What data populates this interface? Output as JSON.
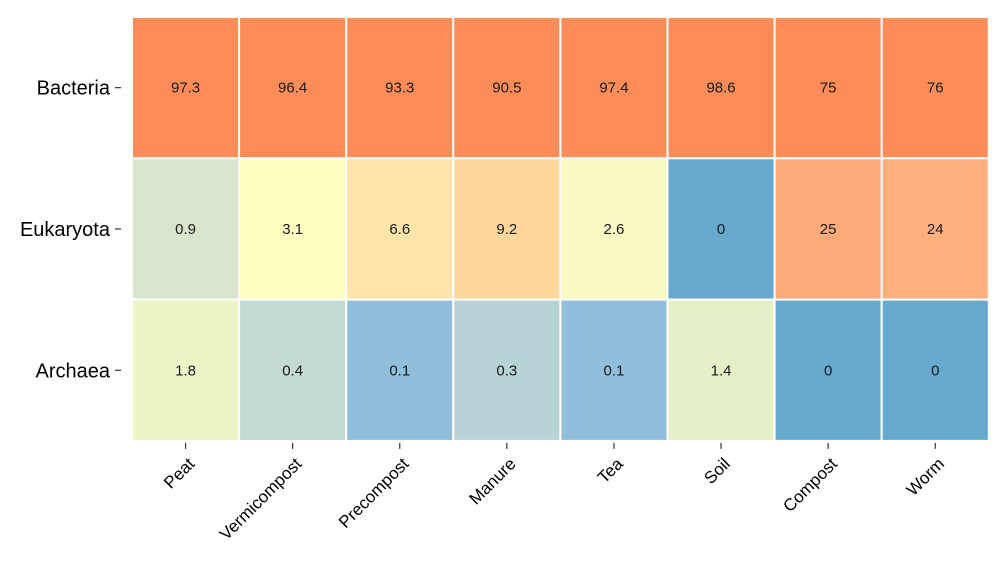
{
  "chart_data": {
    "type": "heatmap",
    "rows": [
      "Bacteria",
      "Eukaryota",
      "Archaea"
    ],
    "columns": [
      "Peat",
      "Vermicompost",
      "Precompost",
      "Manure",
      "Tea",
      "Soil",
      "Compost",
      "Worm"
    ],
    "values": [
      [
        97.3,
        96.4,
        93.3,
        90.5,
        97.4,
        98.6,
        75,
        76
      ],
      [
        0.9,
        3.1,
        6.6,
        9.2,
        2.6,
        0,
        25,
        24
      ],
      [
        1.8,
        0.4,
        0.1,
        0.3,
        0.1,
        1.4,
        0,
        0
      ]
    ],
    "labels": [
      [
        "97.3",
        "96.4",
        "93.3",
        "90.5",
        "97.4",
        "98.6",
        "75",
        "76"
      ],
      [
        "0.9",
        "3.1",
        "6.6",
        "9.2",
        "2.6",
        "0",
        "25",
        "24"
      ],
      [
        "1.8",
        "0.4",
        "0.1",
        "0.3",
        "0.1",
        "1.4",
        "0",
        "0"
      ]
    ],
    "colors": [
      [
        "#fc8d59",
        "#fc8d59",
        "#fc8d59",
        "#fc8d59",
        "#fc8d59",
        "#fc8d59",
        "#fc8d59",
        "#fc8d59"
      ],
      [
        "#d9e5cc",
        "#ffffbf",
        "#fee4a8",
        "#fed89a",
        "#f9f9c3",
        "#67a9cf",
        "#feaa7a",
        "#feb07e"
      ],
      [
        "#edf4c6",
        "#c3d9d3",
        "#91bedb",
        "#b8d3d6",
        "#91bedb",
        "#e6f0c8",
        "#67a9cf",
        "#67a9cf"
      ]
    ],
    "title": "",
    "xlabel": "",
    "ylabel": "",
    "legend": "none",
    "grid": false
  }
}
